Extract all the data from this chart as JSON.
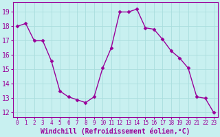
{
  "x": [
    0,
    1,
    2,
    3,
    4,
    5,
    6,
    7,
    8,
    9,
    10,
    11,
    12,
    13,
    14,
    15,
    16,
    17,
    18,
    19,
    20,
    21,
    22,
    23
  ],
  "y": [
    18.0,
    18.2,
    17.0,
    17.0,
    15.6,
    13.5,
    13.1,
    12.9,
    12.7,
    13.1,
    15.1,
    16.5,
    19.0,
    19.0,
    19.2,
    17.9,
    17.8,
    17.1,
    16.3,
    15.8,
    15.1,
    13.1,
    13.0,
    12.0
  ],
  "line_color": "#990099",
  "marker": "D",
  "marker_size": 2.5,
  "bg_color": "#c8f0f0",
  "grid_color": "#aadddd",
  "xlabel": "Windchill (Refroidissement éolien,°C)",
  "xlabel_fontsize": 7,
  "yticks": [
    12,
    13,
    14,
    15,
    16,
    17,
    18,
    19
  ],
  "xticks": [
    0,
    1,
    2,
    3,
    4,
    5,
    6,
    7,
    8,
    9,
    10,
    11,
    12,
    13,
    14,
    15,
    16,
    17,
    18,
    19,
    20,
    21,
    22,
    23
  ],
  "xlim": [
    -0.5,
    23.5
  ],
  "ylim": [
    11.7,
    19.7
  ],
  "ytick_fontsize": 7,
  "xtick_fontsize": 5.5,
  "line_width": 1.0,
  "spine_color": "#990099",
  "tick_color": "#990099"
}
